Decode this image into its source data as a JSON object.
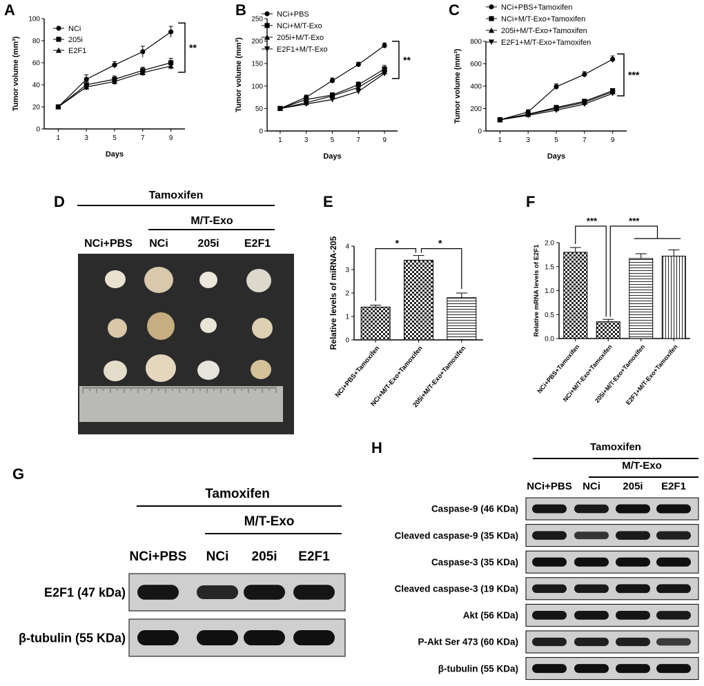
{
  "panels": {
    "A": "A",
    "B": "B",
    "C": "C",
    "D": "D",
    "E": "E",
    "F": "F",
    "G": "G",
    "H": "H"
  },
  "common": {
    "days_label": "Days",
    "tumor_volume_label": "Tumor volume (mm³)"
  },
  "chart_data": [
    {
      "id": "A",
      "type": "line",
      "x": [
        1,
        3,
        5,
        7,
        9
      ],
      "xlabel": "Days",
      "ylabel": "Tumor volume (mm³)",
      "xlim": [
        0,
        10
      ],
      "ylim": [
        0,
        100
      ],
      "xticks": [
        1,
        3,
        5,
        7,
        9
      ],
      "yticks": [
        0,
        20,
        40,
        60,
        80,
        100
      ],
      "series": [
        {
          "name": "NCi",
          "marker": "circle",
          "values": [
            20,
            45,
            58,
            70,
            88
          ],
          "err": [
            1,
            4,
            3,
            5,
            5
          ]
        },
        {
          "name": "205i",
          "marker": "square",
          "values": [
            20,
            40,
            45,
            53,
            60
          ],
          "err": [
            1,
            3,
            3,
            3,
            4
          ]
        },
        {
          "name": "E2F1",
          "marker": "triangle",
          "values": [
            20,
            38,
            43,
            51,
            57
          ],
          "err": [
            1,
            3,
            3,
            3,
            3
          ]
        }
      ],
      "significance": "**",
      "legend": "top-left"
    },
    {
      "id": "B",
      "type": "line",
      "x": [
        1,
        3,
        5,
        7,
        9
      ],
      "xlabel": "Days",
      "ylabel": "Tumor volume (mm³)",
      "xlim": [
        0,
        10
      ],
      "ylim": [
        0,
        250
      ],
      "xticks": [
        1,
        3,
        5,
        7,
        9
      ],
      "yticks": [
        0,
        50,
        100,
        150,
        200,
        250
      ],
      "series": [
        {
          "name": "NCi+PBS",
          "marker": "circle",
          "values": [
            50,
            75,
            112,
            148,
            190
          ],
          "err": [
            3,
            5,
            6,
            5,
            6
          ]
        },
        {
          "name": "NCi+M/T-Exo",
          "marker": "square",
          "values": [
            50,
            70,
            80,
            103,
            138
          ],
          "err": [
            3,
            4,
            5,
            6,
            8
          ]
        },
        {
          "name": "205i+M/T-Exo",
          "marker": "triangle",
          "values": [
            50,
            63,
            78,
            97,
            132
          ],
          "err": [
            3,
            4,
            5,
            5,
            7
          ]
        },
        {
          "name": "E2F1+M/T-Exo",
          "marker": "tri-down",
          "values": [
            50,
            60,
            70,
            88,
            128
          ],
          "err": [
            3,
            4,
            5,
            5,
            6
          ]
        }
      ],
      "significance": "**",
      "legend": "top-left"
    },
    {
      "id": "C",
      "type": "line",
      "x": [
        1,
        3,
        5,
        7,
        9
      ],
      "xlabel": "Days",
      "ylabel": "Tumor volume (mm³)",
      "xlim": [
        0,
        10
      ],
      "ylim": [
        0,
        800
      ],
      "xticks": [
        1,
        3,
        5,
        7,
        9
      ],
      "yticks": [
        0,
        200,
        400,
        600,
        800
      ],
      "series": [
        {
          "name": "NCi+PBS+Tamoxifen",
          "marker": "circle",
          "values": [
            100,
            170,
            395,
            505,
            640
          ],
          "err": [
            5,
            20,
            25,
            25,
            30
          ]
        },
        {
          "name": "NCi+M/T-Exo+Tamoxifen",
          "marker": "square",
          "values": [
            100,
            150,
            210,
            265,
            360
          ],
          "err": [
            5,
            15,
            15,
            15,
            15
          ]
        },
        {
          "name": "205i+M/T-Exo+Tamoxifen",
          "marker": "triangle",
          "values": [
            100,
            148,
            200,
            255,
            350
          ],
          "err": [
            5,
            15,
            15,
            15,
            15
          ]
        },
        {
          "name": "E2F1+M/T-Exo+Tamoxifen",
          "marker": "tri-down",
          "values": [
            100,
            140,
            185,
            240,
            335
          ],
          "err": [
            5,
            15,
            15,
            15,
            15
          ]
        }
      ],
      "significance": "***",
      "legend": "top-left"
    },
    {
      "id": "E",
      "type": "bar",
      "categories": [
        "NCi+PBS+Tamoxifen",
        "NCi+M/T-Exo+Tamoxifen",
        "205i+M/T-Exo+Tamoxifen"
      ],
      "values": [
        1.4,
        3.4,
        1.8
      ],
      "err": [
        0.08,
        0.2,
        0.2
      ],
      "patterns": [
        "check",
        "check",
        "hlines"
      ],
      "ylabel": "Relative levels of miRNA-205",
      "ylim": [
        0,
        4
      ],
      "yticks": [
        0,
        1,
        2,
        3,
        4
      ],
      "significance": [
        "*",
        "*"
      ]
    },
    {
      "id": "F",
      "type": "bar",
      "categories": [
        "NCi+PBS+Tamoxifen",
        "NCi+M/T-Exo+Tamoxifen",
        "205i+M/T-Exo+Tamoxifen",
        "E2F1+M/T-Exo+Tamoxifen"
      ],
      "values": [
        1.8,
        0.35,
        1.67,
        1.72
      ],
      "err": [
        0.1,
        0.05,
        0.1,
        0.13
      ],
      "patterns": [
        "check",
        "check",
        "hlines",
        "vlines"
      ],
      "ylabel": "Relative mRNA levels of E2F1",
      "ylim": [
        0,
        2.0
      ],
      "yticks": [
        0.0,
        0.5,
        1.0,
        1.5,
        2.0
      ],
      "significance": [
        "***",
        "***"
      ]
    }
  ],
  "panelD": {
    "tamoxifen": "Tamoxifen",
    "mtexo": "M/T-Exo",
    "groups": [
      "NCi+PBS",
      "NCi",
      "205i",
      "E2F1"
    ]
  },
  "panelG": {
    "tamoxifen": "Tamoxifen",
    "mtexo": "M/T-Exo",
    "groups": [
      "NCi+PBS",
      "NCi",
      "205i",
      "E2F1"
    ],
    "rows": [
      "E2F1  (47 kDa)",
      "β-tubulin (55 KDa)"
    ],
    "intensity": [
      [
        0.9,
        0.75,
        0.9,
        0.9
      ],
      [
        0.95,
        0.95,
        0.95,
        0.95
      ]
    ]
  },
  "panelH": {
    "tamoxifen": "Tamoxifen",
    "mtexo": "M/T-Exo",
    "groups": [
      "NCi+PBS",
      "NCi",
      "205i",
      "E2F1"
    ],
    "rows": [
      "Caspase-9 (46 KDa)",
      "Cleaved caspase-9 (35 KDa)",
      "Caspase-3 (35 KDa)",
      "Cleaved caspase-3 (19 KDa)",
      "Akt (56 KDa)",
      "P-Akt Ser 473 (60 KDa)",
      "β-tubulin (55 KDa)"
    ],
    "intensity": [
      [
        0.9,
        0.85,
        0.95,
        0.95
      ],
      [
        0.85,
        0.6,
        0.85,
        0.8
      ],
      [
        0.95,
        0.95,
        0.95,
        0.95
      ],
      [
        0.85,
        0.85,
        0.9,
        0.9
      ],
      [
        0.9,
        0.9,
        0.9,
        0.85
      ],
      [
        0.8,
        0.8,
        0.8,
        0.55
      ],
      [
        0.95,
        0.95,
        0.95,
        0.95
      ]
    ]
  }
}
